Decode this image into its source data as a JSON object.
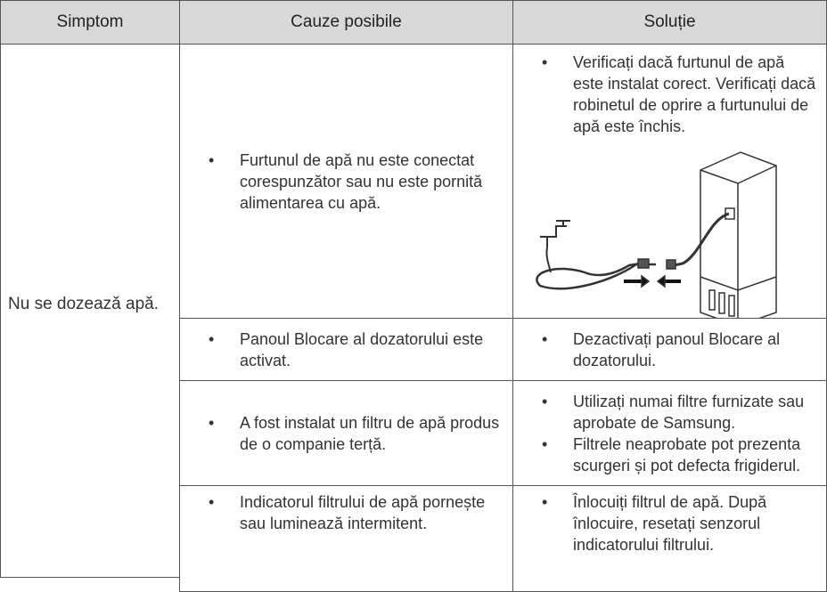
{
  "table": {
    "headers": [
      "Simptom",
      "Cauze posibile",
      "Soluție"
    ],
    "symptom": "Nu se dozează apă.",
    "rows": [
      {
        "causes": [
          "Furtunul de apă nu este conectat corespunzător sau nu este pornită alimentarea cu apă."
        ],
        "solutions": [
          "Verificați dacă furtunul de apă este instalat corect. Verificați dacă robinetul de oprire a furtunului de apă este închis."
        ]
      },
      {
        "causes": [
          "Panoul Blocare al dozatorului este activat."
        ],
        "solutions": [
          "Dezactivați panoul Blocare al dozatorului."
        ]
      },
      {
        "causes": [
          "A fost instalat un filtru de apă produs de o companie terță."
        ],
        "solutions": [
          "Utilizați numai filtre furnizate sau aprobate de Samsung.",
          "Filtrele neaprobate pot prezenta scurgeri și pot defecta frigiderul."
        ]
      },
      {
        "causes": [
          "Indicatorul filtrului de apă pornește sau luminează intermitent."
        ],
        "solutions": [
          "Înlocuiți filtrul de apă. După înlocuire, resetați senzorul indicatorului filtrului."
        ]
      }
    ]
  }
}
